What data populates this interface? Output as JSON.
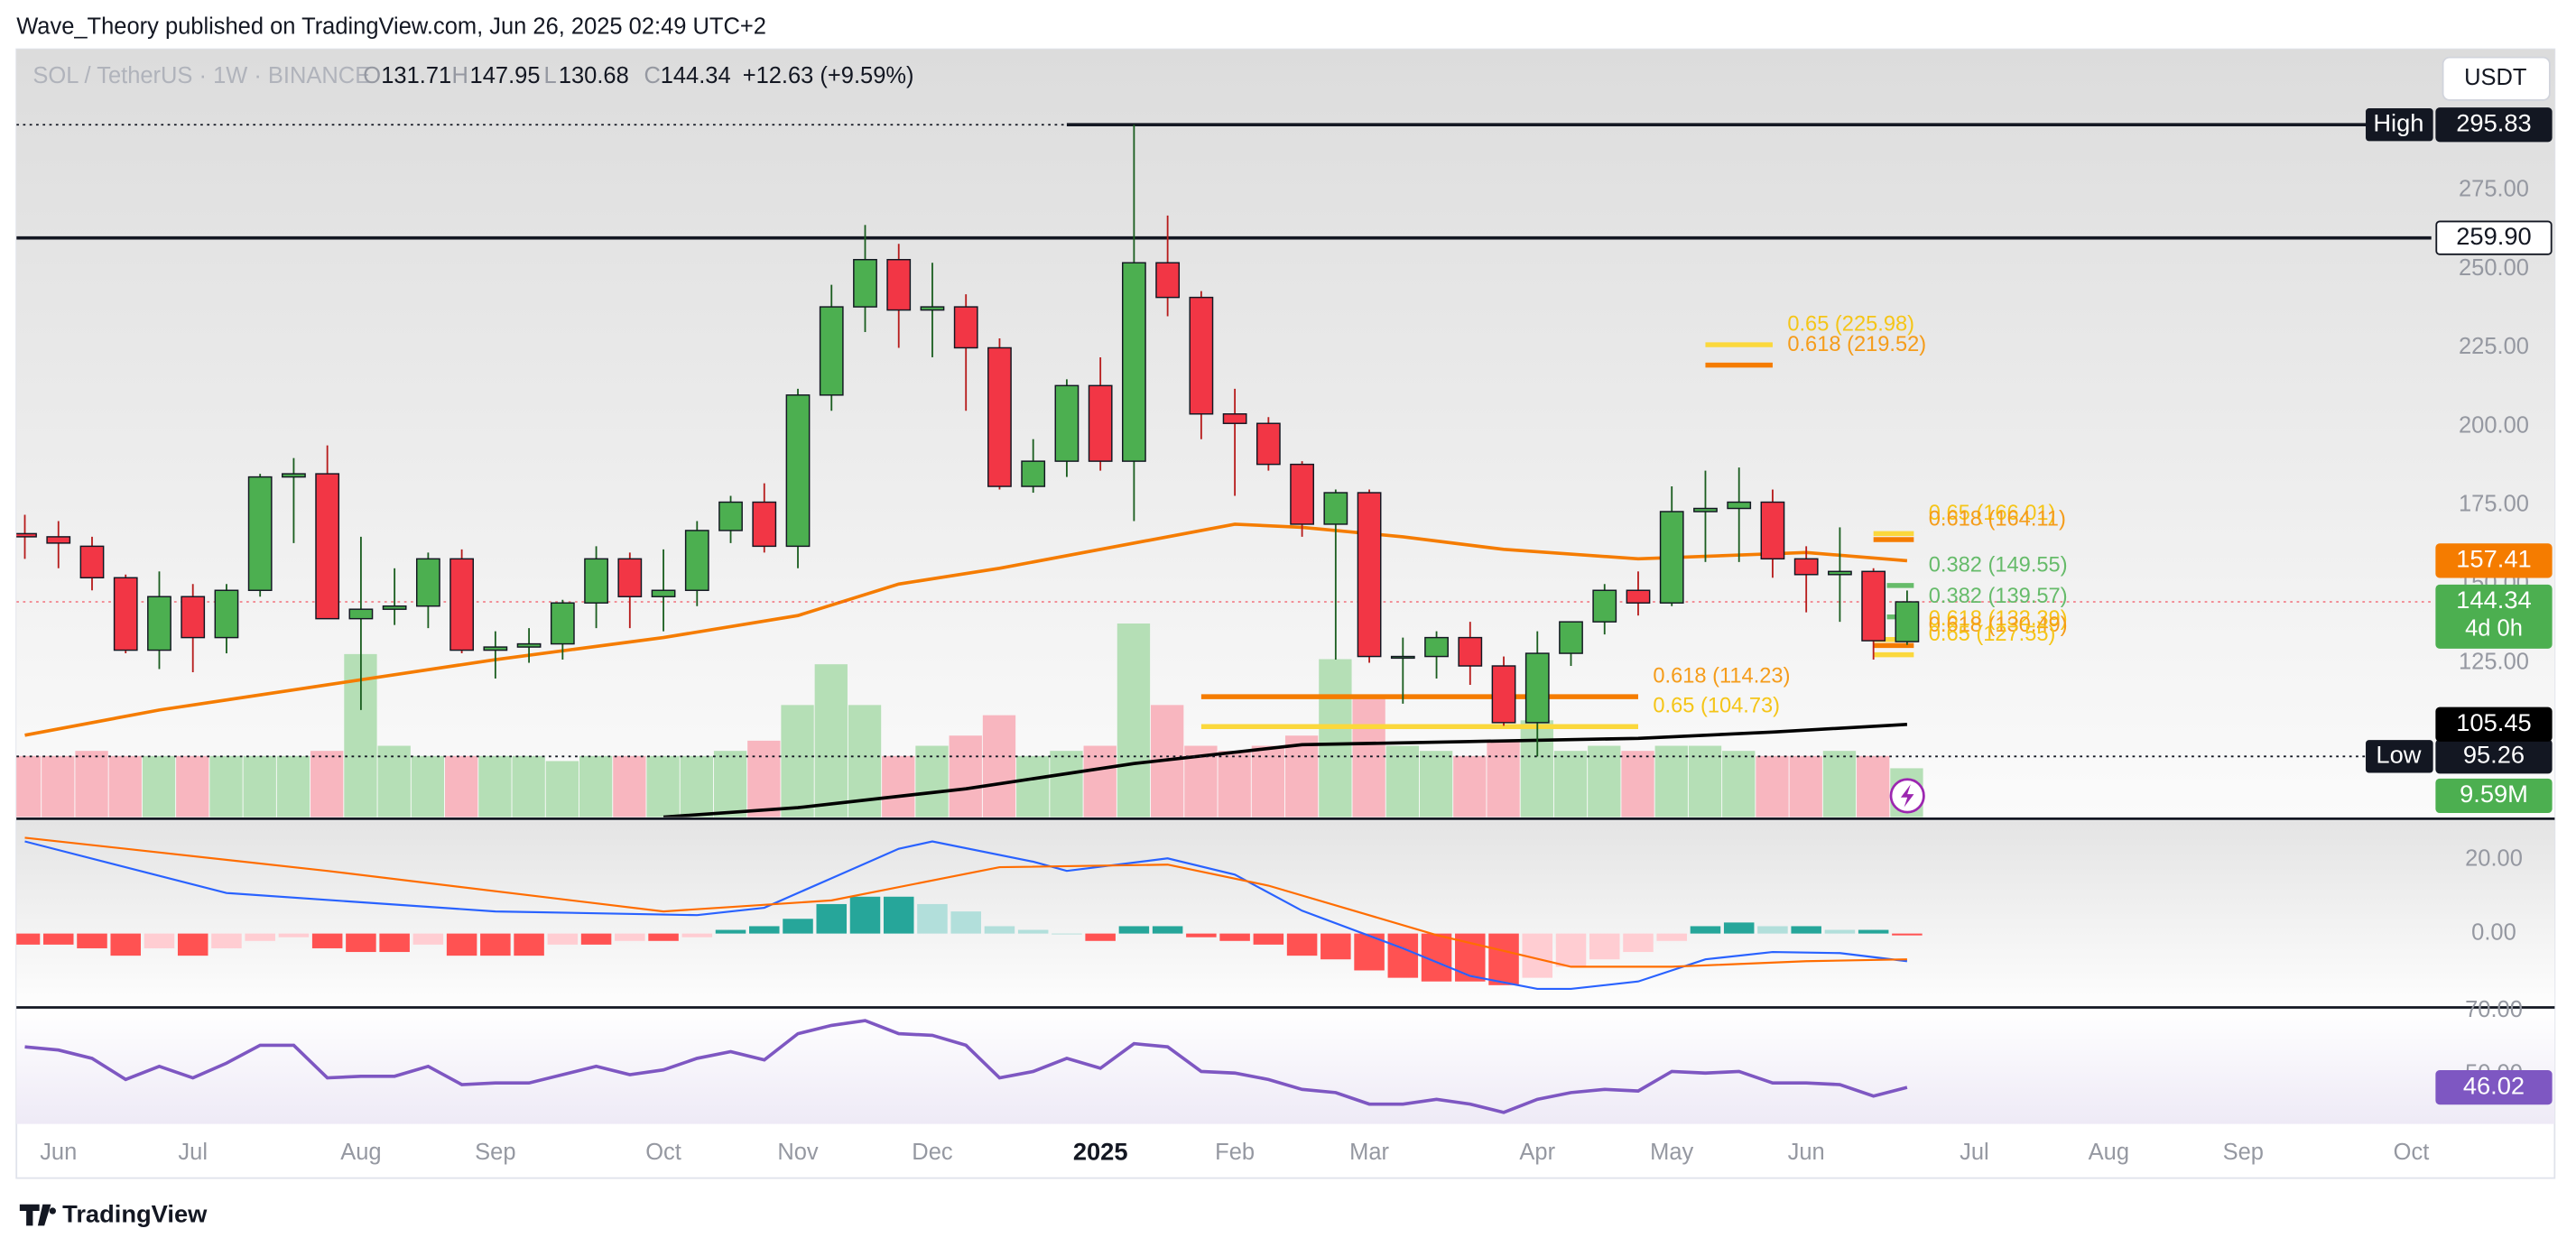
{
  "header": {
    "publisher": "Wave_Theory published on TradingView.com, Jun 26, 2025 02:49 UTC+2"
  },
  "footer": {
    "brand": "TradingView"
  },
  "chart_data": {
    "type": "candlestick",
    "symbol": "SOL / TetherUS · 1W · BINANCE",
    "legend_letters": {
      "open": "O",
      "high": "H",
      "low": "L",
      "close": "C"
    },
    "change": "+12.63 (+9.59%)",
    "currency": "USDT",
    "countdown": "4d 0h",
    "x": [
      0,
      1,
      2,
      3,
      4,
      5,
      6,
      7,
      8,
      9,
      10,
      11,
      12,
      13,
      14,
      15,
      16,
      17,
      18,
      19,
      20,
      21,
      22,
      23,
      24,
      25,
      26,
      27,
      28,
      29,
      30,
      31,
      32,
      33,
      34,
      35,
      36,
      37,
      38,
      39,
      40,
      41,
      42,
      43,
      44,
      45,
      46,
      47,
      48,
      49,
      50,
      51,
      52,
      53,
      54,
      55,
      56
    ],
    "open": [
      166,
      165,
      162,
      152,
      129,
      146,
      133,
      148,
      184,
      185,
      139,
      142,
      143,
      158,
      129,
      130,
      131,
      144,
      158,
      146,
      148,
      167,
      176,
      162,
      210,
      238,
      253,
      237,
      238,
      225,
      181,
      189,
      213,
      189,
      252,
      241,
      204,
      201,
      188,
      169,
      179,
      127,
      127,
      133,
      124,
      106,
      128,
      138,
      148,
      144,
      173,
      174,
      176,
      158,
      153,
      154,
      131.71
    ],
    "high": [
      172,
      170,
      165,
      153,
      154,
      150,
      150,
      185,
      190,
      194,
      165,
      155,
      160,
      161,
      135,
      136,
      145,
      162,
      160,
      161,
      170,
      178,
      182,
      212,
      245,
      264,
      258,
      252,
      242,
      228,
      196,
      215,
      222,
      295.83,
      267,
      243,
      212,
      203,
      189,
      180,
      180,
      133,
      135,
      138,
      127,
      135,
      138,
      150,
      154,
      181,
      186,
      187,
      180,
      162,
      168,
      155,
      147.95
    ],
    "low": [
      158,
      155,
      148,
      128,
      123,
      122,
      128,
      146,
      163,
      140,
      110,
      137,
      136,
      128,
      120,
      125,
      126,
      136,
      136,
      135,
      143,
      163,
      160,
      155,
      205,
      230,
      225,
      222,
      205,
      180,
      179,
      184,
      186,
      170,
      235,
      196,
      178,
      186,
      165,
      126,
      125,
      112,
      120,
      118,
      105,
      95.26,
      124,
      134,
      140,
      143,
      157,
      157,
      152,
      141,
      138,
      126,
      130.68
    ],
    "close": [
      165,
      163,
      152,
      129,
      146,
      133,
      148,
      184,
      185,
      139,
      142,
      143,
      158,
      129,
      130,
      131,
      144,
      158,
      146,
      148,
      167,
      176,
      162,
      210,
      238,
      253,
      237,
      238,
      225,
      181,
      189,
      213,
      189,
      252,
      241,
      204,
      201,
      188,
      169,
      179,
      127,
      127,
      133,
      124,
      106,
      128,
      138,
      148,
      144,
      173,
      174,
      176,
      158,
      153,
      154,
      132,
      144.34
    ],
    "up_color": "#4caf50",
    "down_color": "#f23645",
    "xlim": [
      -0.25,
      71.6
    ],
    "xticks": [
      {
        "value": 1,
        "label": "Jun"
      },
      {
        "value": 5,
        "label": "Jul"
      },
      {
        "value": 10,
        "label": "Aug"
      },
      {
        "value": 14,
        "label": "Sep"
      },
      {
        "value": 19,
        "label": "Oct"
      },
      {
        "value": 23,
        "label": "Nov"
      },
      {
        "value": 27,
        "label": "Dec"
      },
      {
        "value": 32,
        "label": "2025"
      },
      {
        "value": 36,
        "label": "Feb"
      },
      {
        "value": 40,
        "label": "Mar"
      },
      {
        "value": 45,
        "label": "Apr"
      },
      {
        "value": 49,
        "label": "May"
      },
      {
        "value": 53,
        "label": "Jun"
      },
      {
        "value": 58,
        "label": "Jul"
      },
      {
        "value": 62,
        "label": "Aug"
      },
      {
        "value": 66,
        "label": "Sep"
      },
      {
        "value": 71,
        "label": "Oct"
      }
    ],
    "ylim": [
      76,
      319.8
    ],
    "yticks": [
      {
        "value": 275,
        "label": "275.00"
      },
      {
        "value": 250,
        "label": "250.00"
      },
      {
        "value": 225,
        "label": "225.00"
      },
      {
        "value": 200,
        "label": "200.00"
      },
      {
        "value": 175,
        "label": "175.00"
      },
      {
        "value": 150,
        "label": "150.00"
      },
      {
        "value": 125,
        "label": "125.00"
      }
    ],
    "levels": [
      {
        "value": 295.83,
        "tag": "High",
        "solid_from": 31
      },
      {
        "value": 259.9,
        "label": "259.90",
        "solid_from": -0.25
      },
      {
        "value": 95.26,
        "tag": "Low"
      }
    ],
    "series": [
      {
        "color": "#f57c00",
        "x": [
          0,
          4,
          9,
          14,
          19,
          23,
          26,
          29,
          34,
          36,
          38,
          41,
          44,
          48,
          53,
          56
        ],
        "values": [
          102,
          110,
          118,
          126,
          133,
          140,
          150,
          155,
          165,
          169,
          168,
          165,
          161,
          158,
          160,
          157.41
        ]
      },
      {
        "color": "#000000",
        "x": [
          19,
          23,
          28,
          33,
          38,
          43,
          48,
          52,
          56
        ],
        "values": [
          76,
          79,
          85,
          93,
          99,
          100,
          101,
          103,
          105.45
        ]
      }
    ],
    "fib_levels": [
      {
        "label": "0.65 (225.98)",
        "value": 225.98,
        "color": "#fbd83c",
        "text_color": "#f5c518",
        "x": [
          50,
          52
        ]
      },
      {
        "label": "0.618 (219.52)",
        "value": 219.52,
        "color": "#f57c00",
        "text_color": "#f59c1a",
        "x": [
          50,
          52
        ]
      },
      {
        "label": "0.65 (166.01)",
        "value": 166.01,
        "color": "#fbd83c",
        "text_color": "#f5c518",
        "x": [
          55,
          56.2
        ]
      },
      {
        "label": "0.618 (164.11)",
        "value": 164.11,
        "color": "#f57c00",
        "text_color": "#f59c1a",
        "x": [
          55,
          56.2
        ]
      },
      {
        "label": "0.382 (149.55)",
        "value": 149.55,
        "color": "#66bb6a",
        "text_color": "#66bb6a",
        "x": [
          55.4,
          56.2
        ]
      },
      {
        "label": "0.382 (139.57)",
        "value": 139.57,
        "color": "#66bb6a",
        "text_color": "#66bb6a",
        "x": [
          55.4,
          56.2
        ]
      },
      {
        "label": "0.618 (132.39)",
        "value": 132.39,
        "color": "#fbd83c",
        "text_color": "#f5c518",
        "x": [
          55,
          56.2
        ]
      },
      {
        "label": "0.618 (130.49)",
        "value": 130.49,
        "color": "#f57c00",
        "text_color": "#f59c1a",
        "x": [
          55,
          56.2
        ]
      },
      {
        "label": "0.65 (127.55)",
        "value": 127.55,
        "color": "#fbd83c",
        "text_color": "#f5c518",
        "x": [
          55,
          56.2
        ]
      },
      {
        "label": "0.618 (114.23)",
        "value": 114.23,
        "color": "#f57c00",
        "text_color": "#f59c1a",
        "x": [
          35,
          48
        ]
      },
      {
        "label": "0.65 (104.73)",
        "value": 104.73,
        "color": "#fbd83c",
        "text_color": "#f5c518",
        "x": [
          35,
          48
        ]
      }
    ],
    "volume": {
      "values": [
        12,
        12,
        13,
        12,
        12,
        12,
        12,
        12,
        12,
        13,
        32,
        14,
        12,
        12,
        12,
        12,
        11,
        12,
        12,
        12,
        12,
        13,
        15,
        22,
        30,
        22,
        12,
        14,
        16,
        20,
        12,
        13,
        14,
        38,
        22,
        14,
        13,
        14,
        16,
        31,
        24,
        14,
        13,
        12,
        15,
        19,
        13,
        14,
        13,
        14,
        14,
        13,
        12,
        12,
        13,
        12,
        9.59
      ],
      "value_labels": [
        null,
        null,
        null,
        null,
        null,
        null,
        null,
        null,
        null,
        null,
        null,
        null,
        null,
        null,
        null,
        null,
        null,
        null,
        null,
        null,
        null,
        null,
        null,
        null,
        null,
        null,
        null,
        null,
        null,
        null,
        null,
        null,
        null,
        null,
        null,
        null,
        null,
        null,
        null,
        null,
        null,
        null,
        null,
        null,
        null,
        null,
        null,
        null,
        null,
        null,
        null,
        null,
        null,
        null,
        null,
        null,
        "9.59M"
      ],
      "up_color": "#b5dfb6",
      "down_color": "#f8b6bf"
    },
    "macd": {
      "ylim": [
        -19.6,
        30.7
      ],
      "yticks": [
        {
          "value": 20,
          "label": "20.00"
        },
        {
          "value": 0,
          "label": "0.00"
        }
      ],
      "histogram": [
        -3,
        -3,
        -4,
        -6,
        -4,
        -6,
        -4,
        -2,
        -1,
        -4,
        -5,
        -5,
        -3,
        -6,
        -6,
        -6,
        -3,
        -3,
        -2,
        -2,
        -1,
        1,
        2,
        4,
        8,
        10,
        10,
        8,
        6,
        2,
        1,
        0,
        -2,
        2,
        2,
        -1,
        -2,
        -3,
        -6,
        -7,
        -10,
        -12,
        -13,
        -13,
        -14,
        -12,
        -9,
        -7,
        -5,
        -2,
        2,
        3,
        2,
        2,
        1,
        1,
        -0.5
      ],
      "histogram_colors": [
        "#26a69a",
        "#b2dfdb",
        "#ff5252",
        "#ffcdd2"
      ],
      "lines": [
        {
          "color": "#2962ff",
          "x": [
            0,
            6,
            14,
            20,
            22,
            24,
            26,
            27,
            30,
            31,
            34,
            36,
            38,
            41,
            43,
            45,
            46,
            48,
            50,
            52,
            54,
            56
          ],
          "values": [
            25,
            11,
            6,
            5,
            7,
            15,
            23,
            25,
            19.5,
            17,
            20.4,
            16,
            6.2,
            -4,
            -11.5,
            -15,
            -15,
            -13,
            -7,
            -5,
            -5.3,
            -7.5
          ]
        },
        {
          "color": "#ff6d00",
          "x": [
            0,
            9,
            19,
            24,
            29,
            34,
            37,
            42,
            46,
            49,
            53,
            56
          ],
          "values": [
            26,
            17,
            6,
            9,
            18,
            18.7,
            13,
            -0.4,
            -9,
            -9,
            -7.5,
            -7
          ]
        }
      ]
    },
    "rsi": {
      "ylim": [
        34.6,
        70.5
      ],
      "yticks": [
        {
          "value": 70,
          "label": "70.00"
        },
        {
          "value": 50,
          "label": "50.00"
        }
      ],
      "color": "#7e57c2",
      "values": [
        58.7,
        57.7,
        55.1,
        48.5,
        52.6,
        49,
        53.6,
        59.2,
        59.2,
        49,
        49.5,
        49.5,
        52.6,
        46.9,
        47.4,
        47.4,
        50,
        52.6,
        50,
        51.5,
        55.1,
        57.2,
        54.6,
        62.8,
        65.4,
        66.9,
        62.8,
        62.3,
        59.2,
        49,
        51,
        55.1,
        52,
        59.7,
        58.7,
        51,
        50.5,
        48.5,
        45.4,
        44.4,
        40.8,
        40.8,
        42.3,
        40.8,
        38.2,
        42.3,
        44.4,
        45.4,
        44.9,
        51,
        50.5,
        51,
        47.4,
        47.4,
        46.9,
        43.3,
        46.02
      ]
    }
  }
}
